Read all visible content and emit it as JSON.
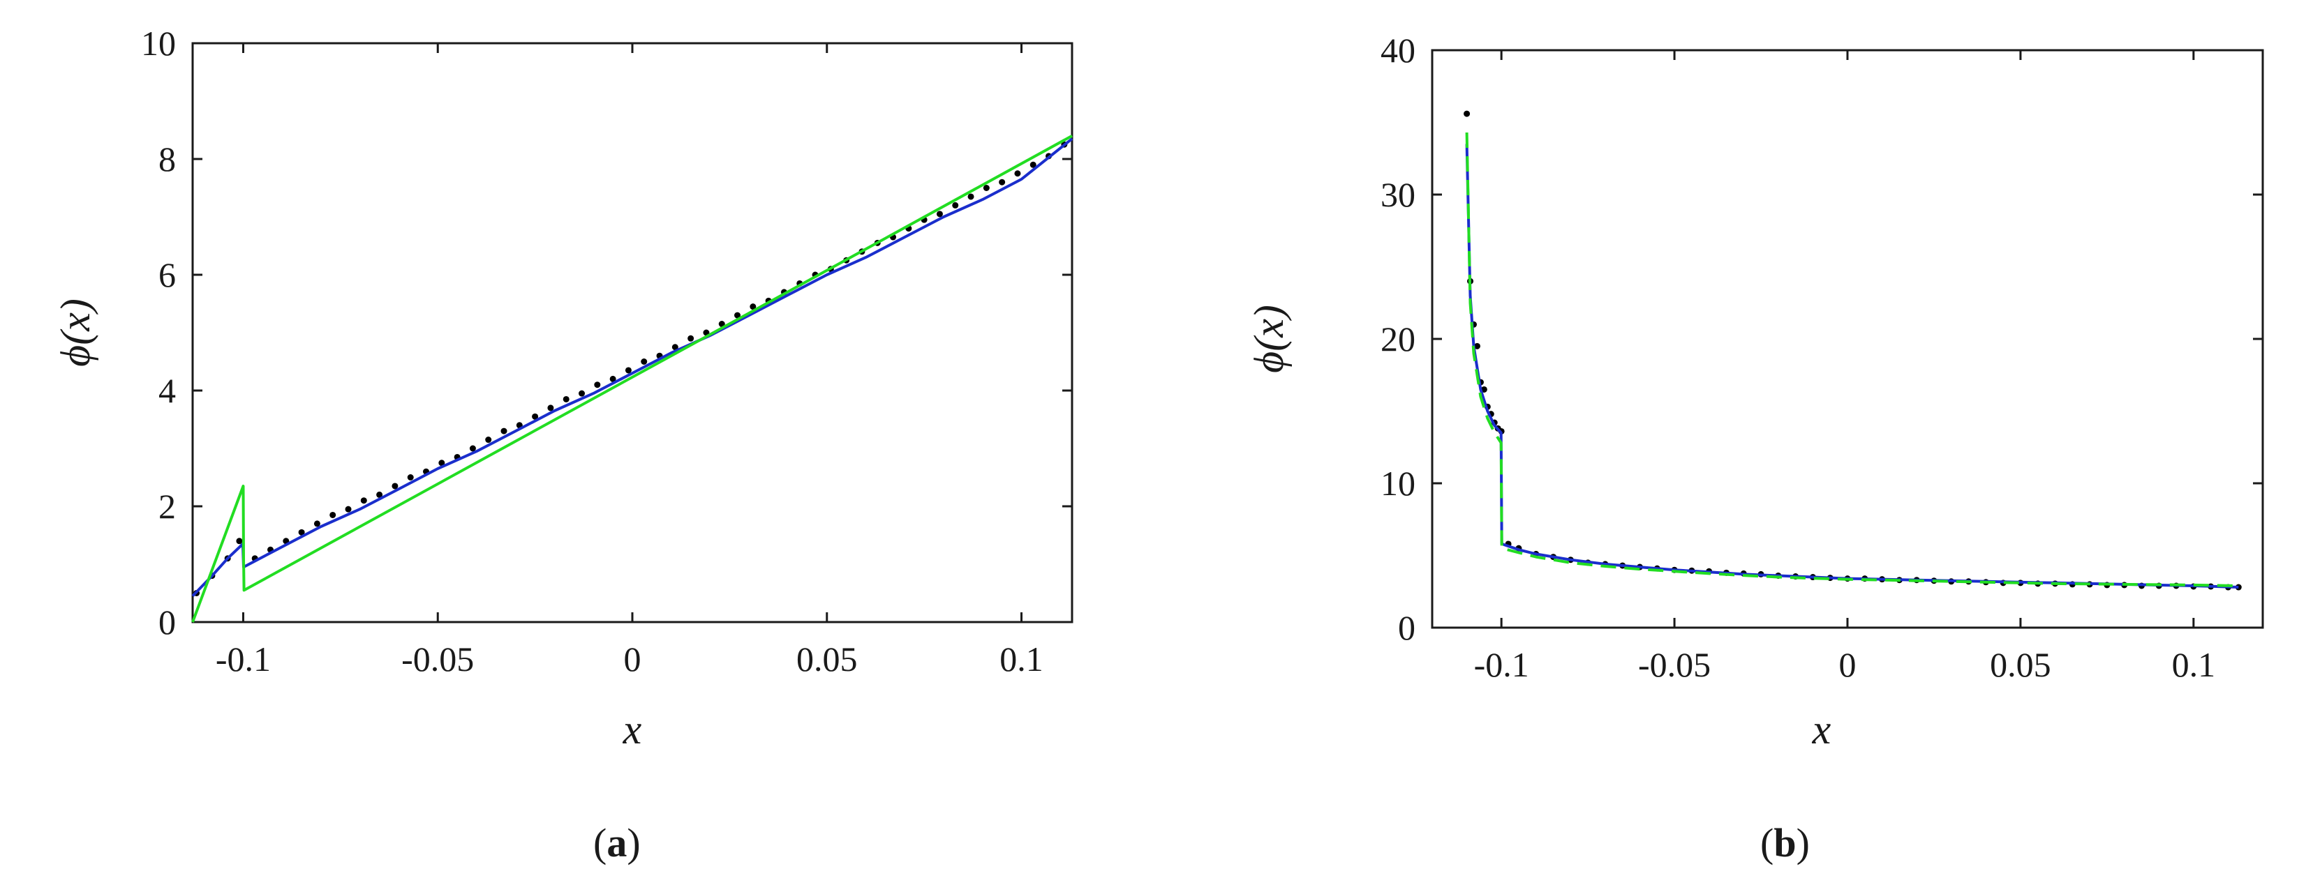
{
  "chart_data": [
    {
      "type": "line",
      "panel_label_open": "(",
      "panel_label_letter": "a",
      "panel_label_close": ")",
      "xlabel": "x",
      "ylabel": "ϕ(x)",
      "xlim": [
        -0.113,
        0.113
      ],
      "ylim": [
        0,
        10
      ],
      "xticks": [
        -0.1,
        -0.05,
        0,
        0.05,
        0.1
      ],
      "xtick_labels": [
        "-0.1",
        "-0.05",
        "0",
        "0.05",
        "0.1"
      ],
      "yticks": [
        0,
        2,
        4,
        6,
        8,
        10
      ],
      "ytick_labels": [
        "0",
        "2",
        "4",
        "6",
        "8",
        "10"
      ],
      "grid": false,
      "series": [
        {
          "style": "points",
          "color": "#000000",
          "x": [
            -0.112,
            -0.108,
            -0.104,
            -0.101,
            -0.097,
            -0.093,
            -0.089,
            -0.085,
            -0.081,
            -0.077,
            -0.073,
            -0.069,
            -0.065,
            -0.061,
            -0.057,
            -0.053,
            -0.049,
            -0.045,
            -0.041,
            -0.037,
            -0.033,
            -0.029,
            -0.025,
            -0.021,
            -0.017,
            -0.013,
            -0.009,
            -0.005,
            -0.001,
            0.003,
            0.007,
            0.011,
            0.015,
            0.019,
            0.023,
            0.027,
            0.031,
            0.035,
            0.039,
            0.043,
            0.047,
            0.051,
            0.055,
            0.059,
            0.063,
            0.067,
            0.071,
            0.075,
            0.079,
            0.083,
            0.087,
            0.091,
            0.095,
            0.099,
            0.103,
            0.107,
            0.111
          ],
          "y": [
            0.5,
            0.8,
            1.1,
            1.4,
            1.1,
            1.25,
            1.4,
            1.55,
            1.7,
            1.85,
            1.95,
            2.1,
            2.2,
            2.35,
            2.5,
            2.6,
            2.75,
            2.85,
            3.0,
            3.15,
            3.3,
            3.4,
            3.55,
            3.7,
            3.85,
            3.95,
            4.1,
            4.2,
            4.35,
            4.5,
            4.6,
            4.75,
            4.9,
            5.0,
            5.15,
            5.3,
            5.45,
            5.55,
            5.7,
            5.85,
            6.0,
            6.1,
            6.25,
            6.4,
            6.55,
            6.65,
            6.8,
            6.95,
            7.05,
            7.2,
            7.35,
            7.5,
            7.6,
            7.75,
            7.9,
            8.05,
            8.25
          ]
        },
        {
          "style": "line",
          "color": "#1a2ecc",
          "x": [
            -0.113,
            -0.108,
            -0.104,
            -0.1001,
            -0.0999,
            -0.09,
            -0.08,
            -0.07,
            -0.06,
            -0.05,
            -0.04,
            -0.03,
            -0.02,
            -0.01,
            0.0,
            0.01,
            0.02,
            0.03,
            0.04,
            0.05,
            0.06,
            0.07,
            0.08,
            0.09,
            0.1,
            0.113
          ],
          "y": [
            0.45,
            0.8,
            1.1,
            1.35,
            0.95,
            1.3,
            1.65,
            1.95,
            2.3,
            2.65,
            2.95,
            3.3,
            3.65,
            3.95,
            4.3,
            4.65,
            4.95,
            5.3,
            5.65,
            6.0,
            6.3,
            6.65,
            7.0,
            7.3,
            7.65,
            8.35
          ]
        },
        {
          "style": "line",
          "color": "#22dd22",
          "x": [
            -0.113,
            -0.1,
            -0.0999,
            -0.0998,
            0.113
          ],
          "y": [
            0.0,
            2.35,
            1.1,
            0.55,
            8.4
          ]
        }
      ]
    },
    {
      "type": "line",
      "panel_label_open": "(",
      "panel_label_letter": "b",
      "panel_label_close": ")",
      "xlabel": "x",
      "ylabel": "ϕ(x)",
      "xlim": [
        -0.12,
        0.12
      ],
      "ylim": [
        0,
        40
      ],
      "xticks": [
        -0.1,
        -0.05,
        0,
        0.05,
        0.1
      ],
      "xtick_labels": [
        "-0.1",
        "-0.05",
        "0",
        "0.05",
        "0.1"
      ],
      "yticks": [
        0,
        10,
        20,
        30,
        40
      ],
      "ytick_labels": [
        "0",
        "10",
        "20",
        "30",
        "40"
      ],
      "grid": false,
      "series": [
        {
          "style": "points",
          "color": "#000000",
          "x": [
            -0.11,
            -0.109,
            -0.108,
            -0.107,
            -0.106,
            -0.105,
            -0.104,
            -0.103,
            -0.102,
            -0.101,
            -0.1,
            -0.098,
            -0.095,
            -0.09,
            -0.085,
            -0.08,
            -0.075,
            -0.07,
            -0.065,
            -0.06,
            -0.055,
            -0.05,
            -0.045,
            -0.04,
            -0.035,
            -0.03,
            -0.025,
            -0.02,
            -0.015,
            -0.01,
            -0.005,
            0.0,
            0.005,
            0.01,
            0.015,
            0.02,
            0.025,
            0.03,
            0.035,
            0.04,
            0.045,
            0.05,
            0.055,
            0.06,
            0.065,
            0.07,
            0.075,
            0.08,
            0.085,
            0.09,
            0.095,
            0.1,
            0.105,
            0.11,
            0.113
          ],
          "y": [
            35.6,
            24.0,
            21.0,
            19.5,
            17.0,
            16.5,
            15.3,
            14.8,
            14.2,
            13.8,
            13.6,
            5.8,
            5.5,
            5.1,
            4.9,
            4.7,
            4.5,
            4.4,
            4.3,
            4.2,
            4.1,
            4.0,
            3.95,
            3.9,
            3.8,
            3.75,
            3.7,
            3.6,
            3.55,
            3.5,
            3.45,
            3.4,
            3.4,
            3.35,
            3.3,
            3.3,
            3.25,
            3.2,
            3.2,
            3.15,
            3.1,
            3.1,
            3.05,
            3.05,
            3.0,
            3.0,
            2.95,
            2.95,
            2.9,
            2.9,
            2.9,
            2.85,
            2.85,
            2.8,
            2.8
          ]
        },
        {
          "style": "line",
          "color": "#1a2ecc",
          "x": [
            -0.11,
            -0.109,
            -0.108,
            -0.106,
            -0.104,
            -0.102,
            -0.1001,
            -0.0999,
            -0.095,
            -0.09,
            -0.08,
            -0.07,
            -0.06,
            -0.05,
            -0.04,
            -0.03,
            -0.02,
            -0.01,
            0.0,
            0.02,
            0.04,
            0.06,
            0.08,
            0.1,
            0.113
          ],
          "y": [
            33.5,
            23.0,
            19.5,
            16.5,
            15.0,
            14.0,
            13.5,
            5.8,
            5.4,
            5.1,
            4.7,
            4.4,
            4.2,
            4.0,
            3.85,
            3.7,
            3.6,
            3.5,
            3.4,
            3.3,
            3.2,
            3.1,
            3.0,
            2.9,
            2.8
          ]
        },
        {
          "style": "line",
          "color": "#22dd22",
          "x": [
            -0.11,
            -0.109,
            -0.108,
            -0.106,
            -0.104,
            -0.102,
            -0.1001,
            -0.0999,
            -0.095,
            -0.09,
            -0.08,
            -0.07,
            -0.06,
            -0.05,
            -0.04,
            -0.03,
            -0.02,
            -0.01,
            0.0,
            0.02,
            0.04,
            0.06,
            0.08,
            0.1,
            0.113
          ],
          "y": [
            34.3,
            22.5,
            19.0,
            16.0,
            14.5,
            13.5,
            12.8,
            5.5,
            5.2,
            4.9,
            4.5,
            4.25,
            4.05,
            3.9,
            3.75,
            3.62,
            3.5,
            3.42,
            3.35,
            3.25,
            3.15,
            3.05,
            3.0,
            2.95,
            2.9
          ]
        }
      ]
    }
  ]
}
